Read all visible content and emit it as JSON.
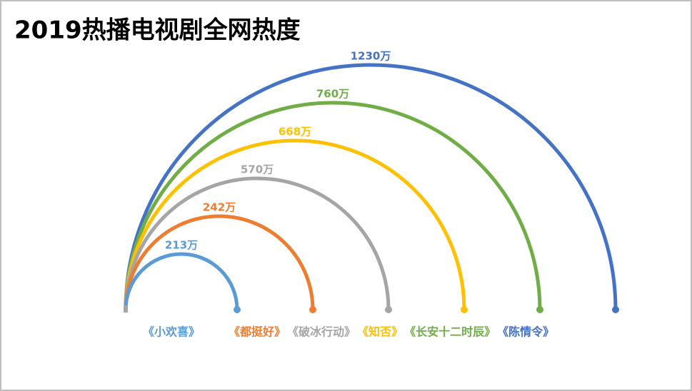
{
  "chart_data": {
    "type": "arc",
    "title": "2019热播电视剧全网热度",
    "categories": [
      "《小欢喜》",
      "《都挺好》",
      "《破冰行动》",
      "《知否》",
      "《长安十二时辰》",
      "《陈情令》"
    ],
    "values": [
      213,
      242,
      570,
      668,
      760,
      1230
    ],
    "value_labels": [
      "213万",
      "242万",
      "570万",
      "668万",
      "760万",
      "1230万"
    ],
    "colors": [
      "#5b9bd5",
      "#ed7d31",
      "#a5a5a5",
      "#ffc000",
      "#70ad47",
      "#4472c4"
    ]
  }
}
